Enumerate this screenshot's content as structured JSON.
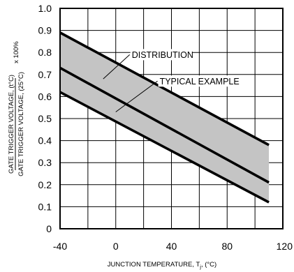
{
  "chart_data": {
    "type": "line",
    "xlabel": "JUNCTION TEMPERATURE, T",
    "xlabel_sub": "j",
    "xlabel_unit": ", (°C)",
    "ylabel_top": "GATE TRIGGER VOLTAGE, (t°C)",
    "ylabel_bottom": "GATE TRIGGER VOLTAGE, (25°C)",
    "ylabel_factor": "x 100%",
    "xlim": [
      -40,
      120
    ],
    "ylim": [
      0,
      1.0
    ],
    "x_ticks": [
      -40,
      0,
      40,
      80,
      120
    ],
    "x_tick_labels": [
      "-40",
      "0",
      "40",
      "80",
      "120"
    ],
    "y_ticks": [
      0,
      0.1,
      0.2,
      0.3,
      0.4,
      0.5,
      0.6,
      0.7,
      0.8,
      0.9,
      1.0
    ],
    "y_tick_labels": [
      "0",
      "0.1",
      "0.2",
      "0.3",
      "0.4",
      "0.5",
      "0.6",
      "0.7",
      "0.8",
      "0.9",
      "1.0"
    ],
    "grid": true,
    "series": [
      {
        "role": "upper",
        "x": [
          -40,
          110
        ],
        "y": [
          0.89,
          0.38
        ]
      },
      {
        "role": "typical",
        "x": [
          -40,
          110
        ],
        "y": [
          0.73,
          0.21
        ]
      },
      {
        "role": "lower",
        "x": [
          -40,
          110
        ],
        "y": [
          0.62,
          0.12
        ]
      }
    ],
    "annotations": [
      {
        "text": "DISTRIBUTION",
        "point": [
          -9,
          0.68
        ],
        "text_at": [
          10,
          0.79
        ]
      },
      {
        "text": "TYPICAL EXAMPLE",
        "point": [
          0,
          0.53
        ],
        "text_at": [
          30,
          0.67
        ]
      }
    ]
  }
}
